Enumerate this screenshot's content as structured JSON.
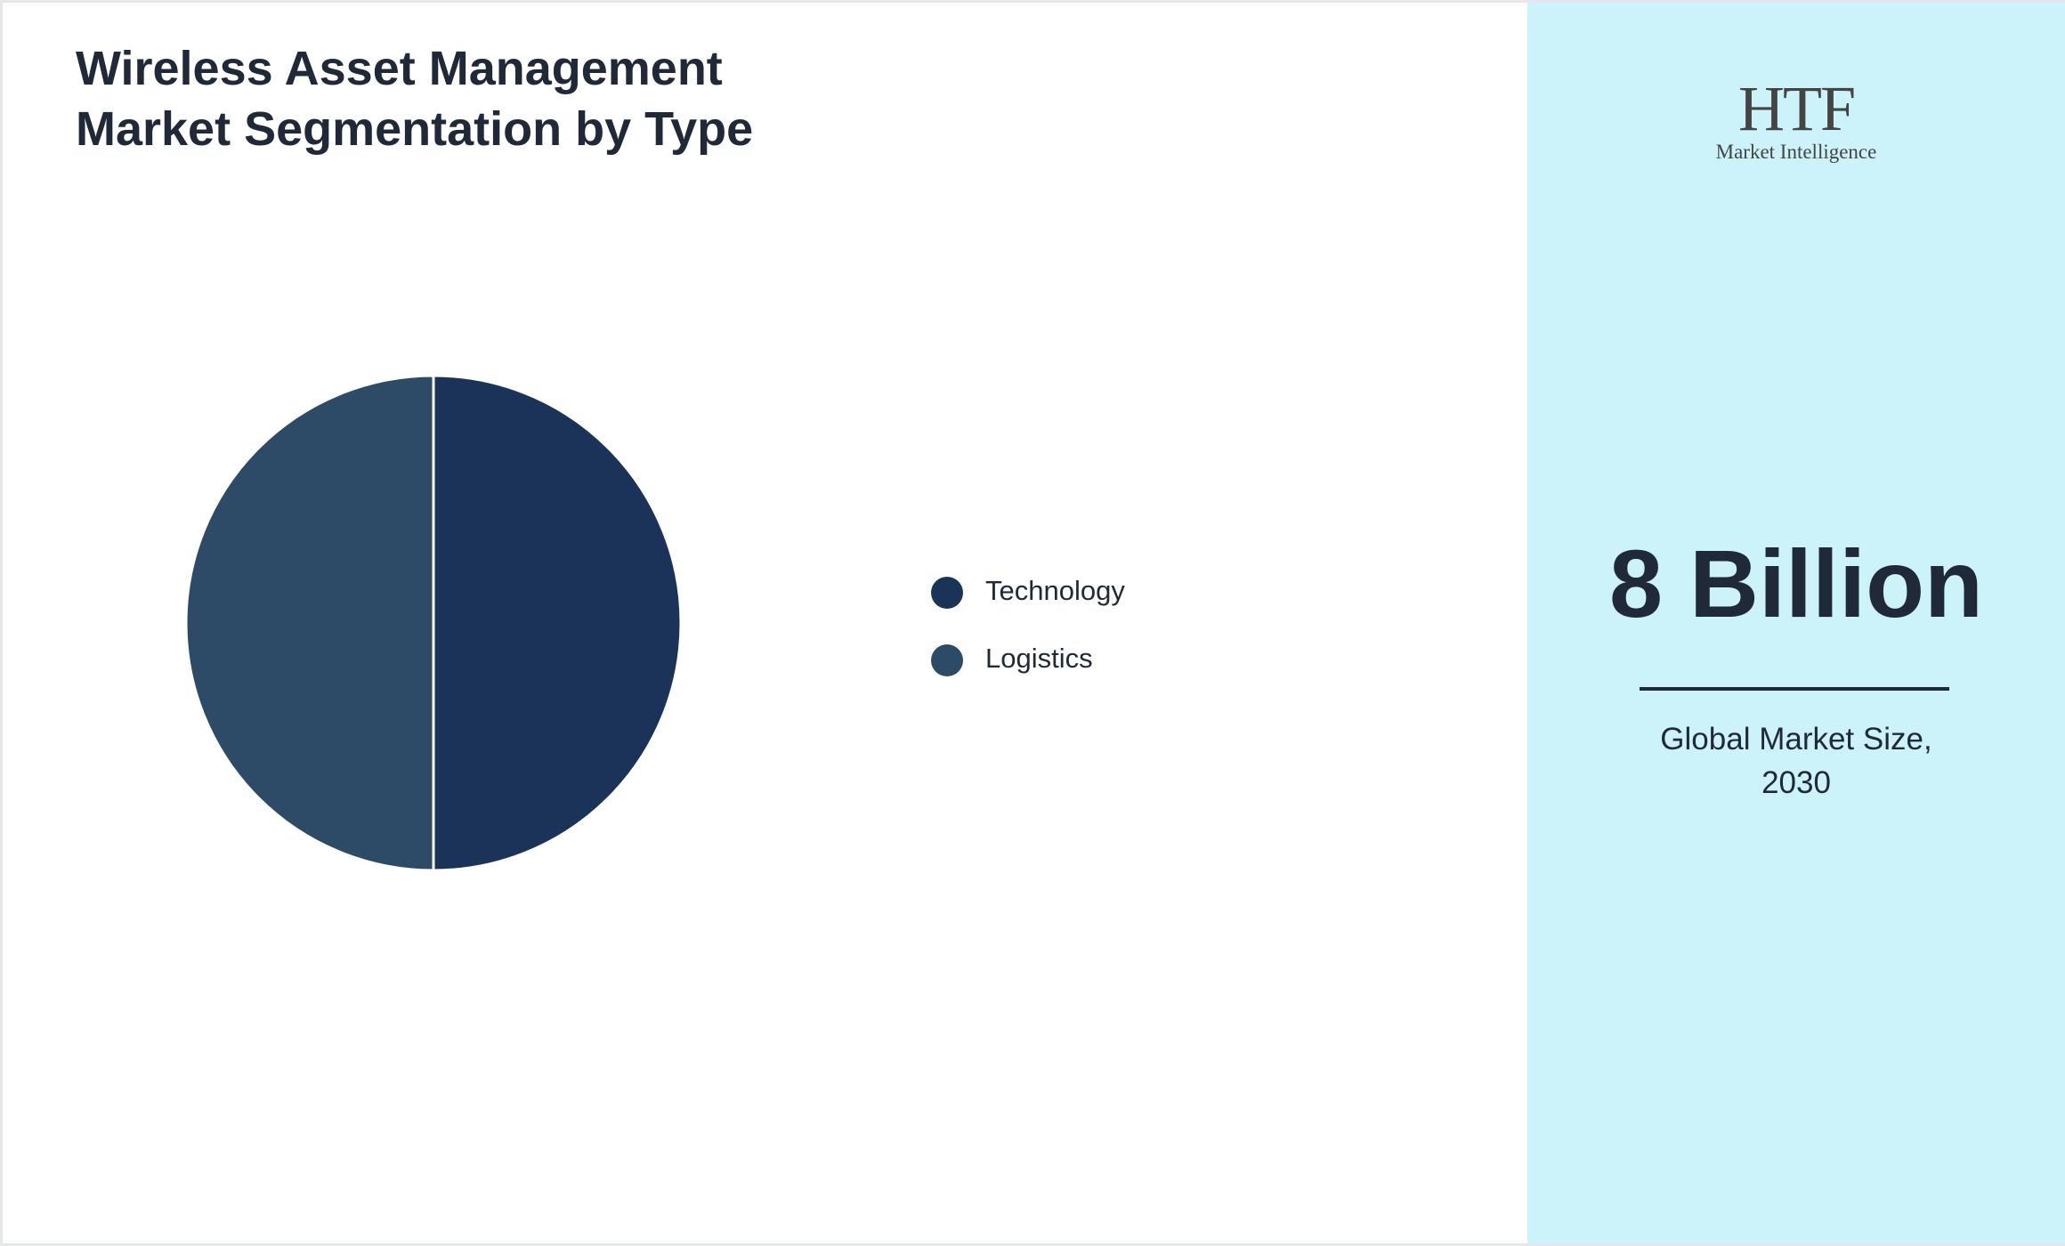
{
  "chart_data": {
    "type": "pie",
    "title": "Wireless Asset Management Market Segmentation by Type",
    "categories": [
      "Technology",
      "Logistics"
    ],
    "values": [
      50,
      50
    ],
    "colors": [
      "#1b3358",
      "#2d4a66"
    ]
  },
  "logo": {
    "name": "HTF",
    "tagline": "Market Intelligence"
  },
  "market_size": {
    "value": "8 Billion",
    "label": "Global Market Size, 2030"
  }
}
